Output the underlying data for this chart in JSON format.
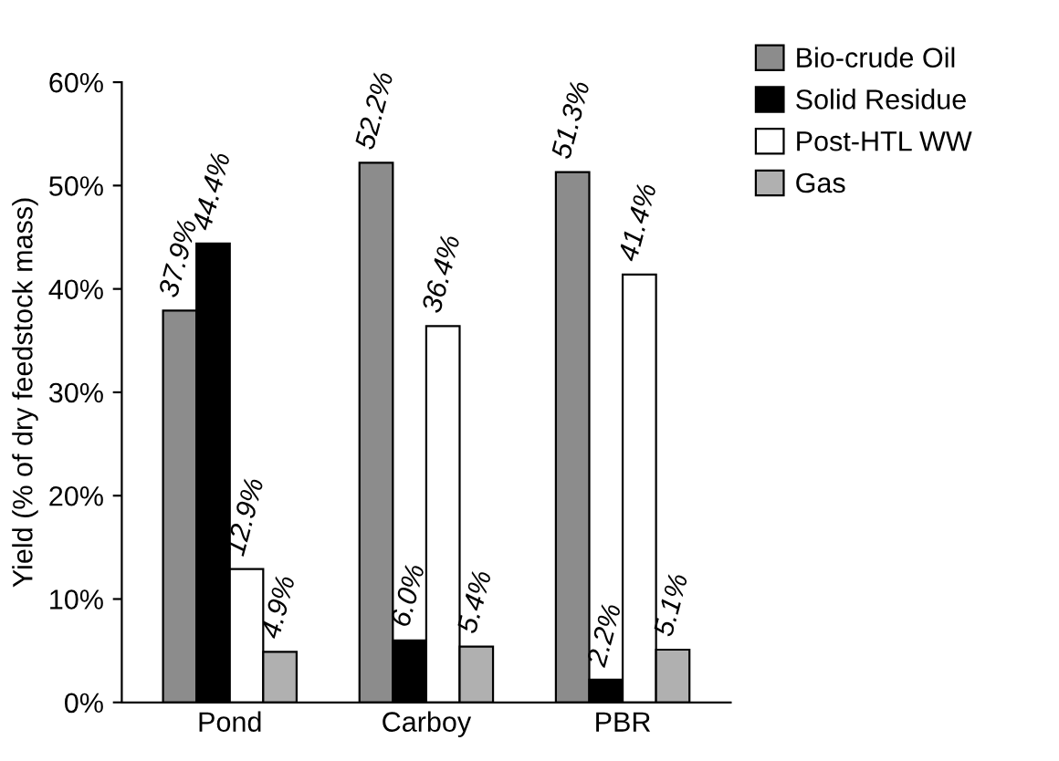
{
  "chart_data": {
    "type": "bar",
    "ylabel": "Yield (% of dry feedstock mass)",
    "categories": [
      "Pond",
      "Carboy",
      "PBR"
    ],
    "series": [
      {
        "name": "Bio-crude Oil",
        "color": "#8c8c8c",
        "values": [
          37.9,
          52.2,
          51.3
        ],
        "value_labels": [
          "37.9%",
          "52.2%",
          "51.3%"
        ]
      },
      {
        "name": "Solid Residue",
        "color": "#000000",
        "values": [
          44.4,
          6.0,
          2.2
        ],
        "value_labels": [
          "44.4%",
          "6.0%",
          "2.2%"
        ]
      },
      {
        "name": "Post-HTL WW",
        "color": "#ffffff",
        "values": [
          12.9,
          36.4,
          41.4
        ],
        "value_labels": [
          "12.9%",
          "36.4%",
          "41.4%"
        ]
      },
      {
        "name": "Gas",
        "color": "#b0b0b0",
        "values": [
          4.9,
          5.4,
          5.1
        ],
        "value_labels": [
          "4.9%",
          "5.4%",
          "5.1%"
        ]
      }
    ],
    "ylim": [
      0,
      60
    ],
    "yticks": [
      {
        "value": 0,
        "label": "0%"
      },
      {
        "value": 10,
        "label": "10%"
      },
      {
        "value": 20,
        "label": "20%"
      },
      {
        "value": 30,
        "label": "30%"
      },
      {
        "value": 40,
        "label": "40%"
      },
      {
        "value": 50,
        "label": "50%"
      },
      {
        "value": 60,
        "label": "60%"
      }
    ],
    "grid": false,
    "legend": "top right"
  }
}
